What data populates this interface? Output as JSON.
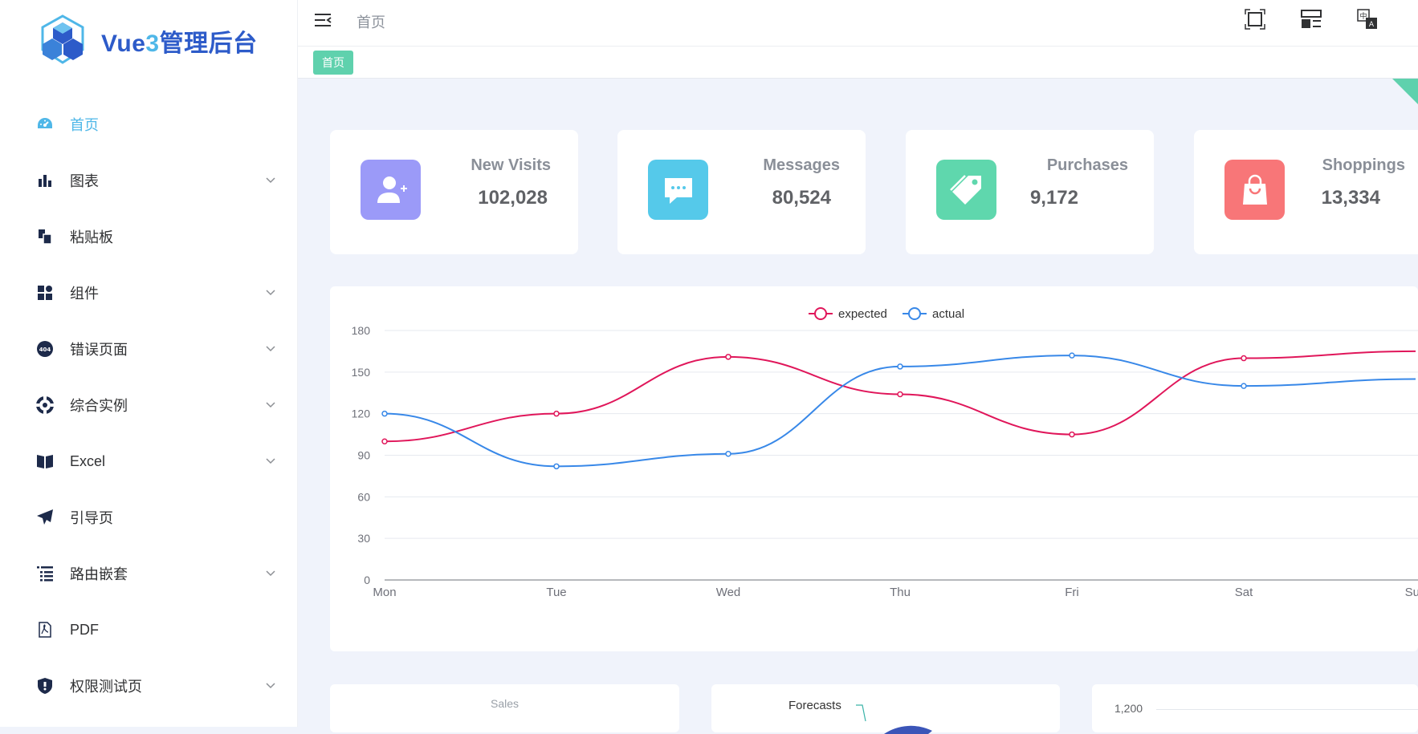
{
  "app": {
    "logo_text_a": "Vue",
    "logo_text_num": "3",
    "logo_text_b": "管理后台"
  },
  "sidebar": {
    "items": [
      {
        "label": "首页",
        "icon": "dashboard-icon",
        "active": true,
        "expandable": false
      },
      {
        "label": "图表",
        "icon": "bar-chart-icon",
        "active": false,
        "expandable": true
      },
      {
        "label": "粘贴板",
        "icon": "clipboard-icon",
        "active": false,
        "expandable": false
      },
      {
        "label": "组件",
        "icon": "grid-icon",
        "active": false,
        "expandable": true
      },
      {
        "label": "错误页面",
        "icon": "error-404-icon",
        "active": false,
        "expandable": true
      },
      {
        "label": "综合实例",
        "icon": "compass-icon",
        "active": false,
        "expandable": true
      },
      {
        "label": "Excel",
        "icon": "book-icon",
        "active": false,
        "expandable": true
      },
      {
        "label": "引导页",
        "icon": "paper-plane-icon",
        "active": false,
        "expandable": false
      },
      {
        "label": "路由嵌套",
        "icon": "tree-list-icon",
        "active": false,
        "expandable": true
      },
      {
        "label": "PDF",
        "icon": "pdf-icon",
        "active": false,
        "expandable": false
      },
      {
        "label": "权限测试页",
        "icon": "shield-icon",
        "active": false,
        "expandable": true
      }
    ]
  },
  "header": {
    "breadcrumb": "首页",
    "tools": [
      "fullscreen-icon",
      "layout-icon",
      "language-icon"
    ]
  },
  "tags": {
    "active_tag": "首页"
  },
  "stats": [
    {
      "title": "New Visits",
      "value": "102,028",
      "color": "#9b9af8",
      "icon": "user-add-icon"
    },
    {
      "title": "Messages",
      "value": "80,524",
      "color": "#55c9ea",
      "icon": "message-icon"
    },
    {
      "title": "Purchases",
      "value": "9,172",
      "color": "#5fd7ad",
      "icon": "tag-icon"
    },
    {
      "title": "Shoppings",
      "value": "13,334",
      "color": "#f87678",
      "icon": "shopping-bag-icon"
    }
  ],
  "chart_data": {
    "type": "line",
    "categories": [
      "Mon",
      "Tue",
      "Wed",
      "Thu",
      "Fri",
      "Sat",
      "Sun"
    ],
    "series": [
      {
        "name": "expected",
        "values": [
          100,
          120,
          161,
          134,
          105,
          160,
          165
        ],
        "color": "#e0165a"
      },
      {
        "name": "actual",
        "values": [
          120,
          82,
          91,
          154,
          162,
          140,
          145
        ],
        "color": "#3888e8"
      }
    ],
    "yticks": [
      0,
      30,
      60,
      90,
      120,
      150,
      180
    ],
    "ylim": [
      0,
      180
    ],
    "grid": true,
    "legend": "top-center",
    "smooth": true
  },
  "bottom": {
    "sales_title": "Sales",
    "forecasts_label": "Forecasts",
    "axis_tick": "1,200"
  }
}
